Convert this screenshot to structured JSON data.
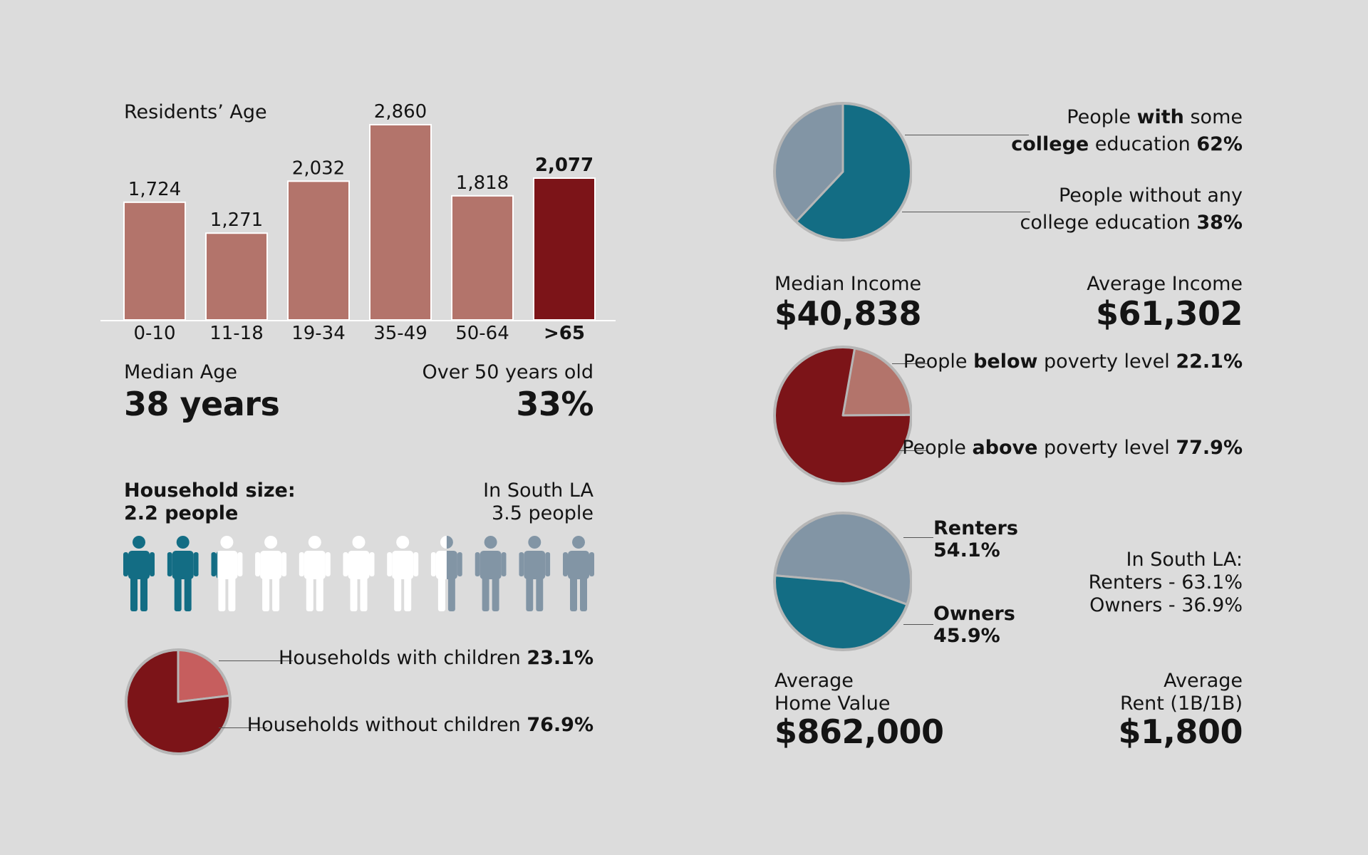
{
  "colors": {
    "background": "#dcdcdc",
    "bar": "#b3746b",
    "bar_highlight": "#7c1418",
    "teal": "#136d84",
    "slate": "#8295a5",
    "dark_red": "#7c1418",
    "rose": "#b3746b",
    "coral": "#c65e5e",
    "white": "#ffffff"
  },
  "chart_data": [
    {
      "type": "bar",
      "title": "Residents’ Age",
      "categories": [
        "0-10",
        "11-18",
        "19-34",
        "35-49",
        "50-64",
        ">65"
      ],
      "values": [
        1724,
        1271,
        2032,
        2860,
        1818,
        2077
      ],
      "value_labels": [
        "1,724",
        "1,271",
        "2,032",
        "2,860",
        "1,818",
        "2,077"
      ],
      "highlight_index": 5,
      "ylim": [
        0,
        2860
      ]
    },
    {
      "type": "pie",
      "slices": [
        {
          "label_parts": [
            "Households with children ",
            "23.1%"
          ],
          "value": 23.1,
          "color": "#c65e5e"
        },
        {
          "label_parts": [
            "Households without children ",
            "76.9%"
          ],
          "value": 76.9,
          "color": "#7c1418"
        }
      ]
    },
    {
      "type": "pie",
      "slices": [
        {
          "label_line1": [
            "People ",
            "with",
            " some"
          ],
          "label_line2": [
            "college",
            " education ",
            "62%"
          ],
          "value": 62,
          "color": "#136d84"
        },
        {
          "label_line1": [
            "People without any"
          ],
          "label_line2": [
            "college education ",
            "38%"
          ],
          "value": 38,
          "color": "#8295a5"
        }
      ]
    },
    {
      "type": "pie",
      "slices": [
        {
          "label_parts": [
            "People ",
            "below",
            " poverty level ",
            "22.1%"
          ],
          "value": 22.1,
          "color": "#b3746b"
        },
        {
          "label_parts": [
            "People ",
            "above",
            " poverty level ",
            "77.9%"
          ],
          "value": 77.9,
          "color": "#7c1418"
        }
      ]
    },
    {
      "type": "pie",
      "slices": [
        {
          "name": "Renters",
          "pct": "54.1%",
          "value": 54.1,
          "color": "#8295a5"
        },
        {
          "name": "Owners",
          "pct": "45.9%",
          "value": 45.9,
          "color": "#136d84"
        }
      ]
    }
  ],
  "age_stats": {
    "median_label": "Median Age",
    "median_value": "38 years",
    "over50_label": "Over 50 years old",
    "over50_value": "33%"
  },
  "household": {
    "size_label": "Household size:",
    "size_value": "2.2 people",
    "south_la_label": "In South LA",
    "south_la_value": "3.5 people",
    "local_size": 2.2,
    "south_la_size": 3.5,
    "figure_count": 11
  },
  "income": {
    "median_label": "Median Income",
    "median_value": "$40,838",
    "average_label": "Average Income",
    "average_value": "$61,302"
  },
  "housing": {
    "south_la_title": "In South LA:",
    "south_la_renters": "Renters - 63.1%",
    "south_la_owners": "Owners - 36.9%",
    "home_value_line1": "Average",
    "home_value_line2": "Home Value",
    "home_value": "$862,000",
    "rent_line1": "Average",
    "rent_line2": "Rent (1B/1B)",
    "rent_value": "$1,800"
  }
}
